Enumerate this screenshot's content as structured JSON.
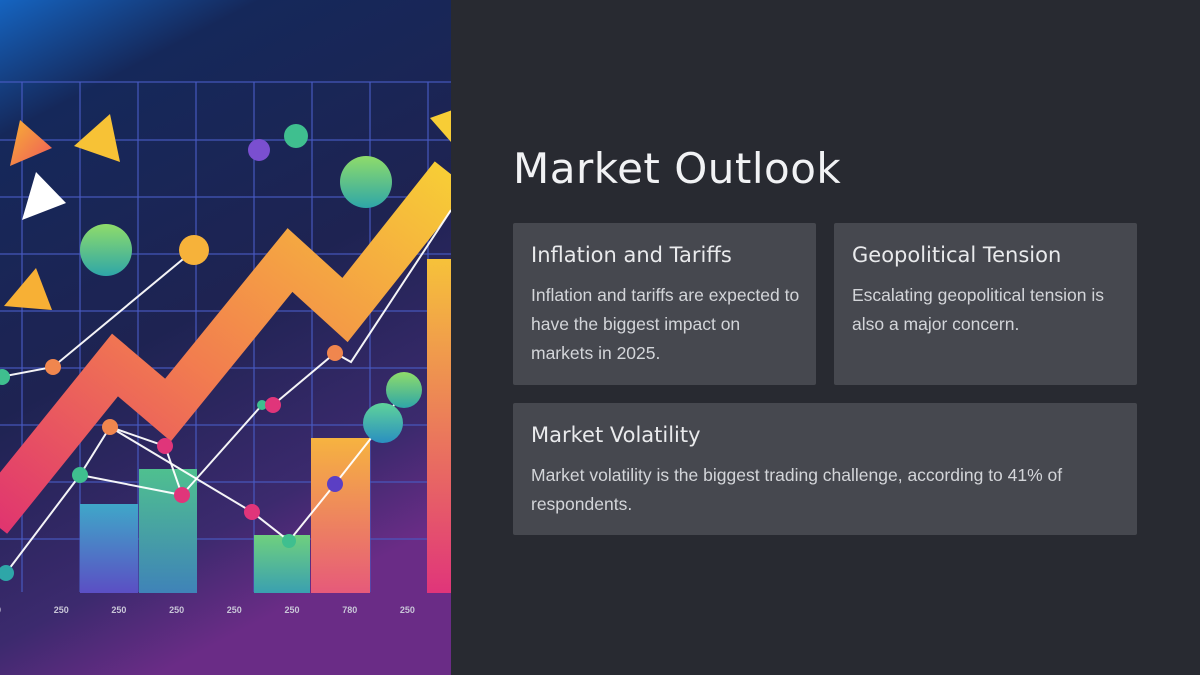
{
  "slide": {
    "title": "Market Outlook",
    "cards": [
      {
        "title": "Inflation and Tariffs",
        "body": "Inflation and tariffs are expected to have the biggest impact on markets in 2025."
      },
      {
        "title": "Geopolitical Tension",
        "body": "Escalating geopolitical tension is also a major concern."
      },
      {
        "title": "Market Volatility",
        "body": "Market volatility is the biggest trading challenge, according to 41% of respondents."
      }
    ]
  },
  "illustration": {
    "axis_labels": [
      "0",
      "250",
      "250",
      "250",
      "250",
      "250",
      "780",
      "250"
    ]
  },
  "colors": {
    "background": "#282a31",
    "card": "#46484f",
    "title": "#f1f2f4",
    "card_title": "#e9eaec",
    "card_text": "#d3d5d9"
  }
}
